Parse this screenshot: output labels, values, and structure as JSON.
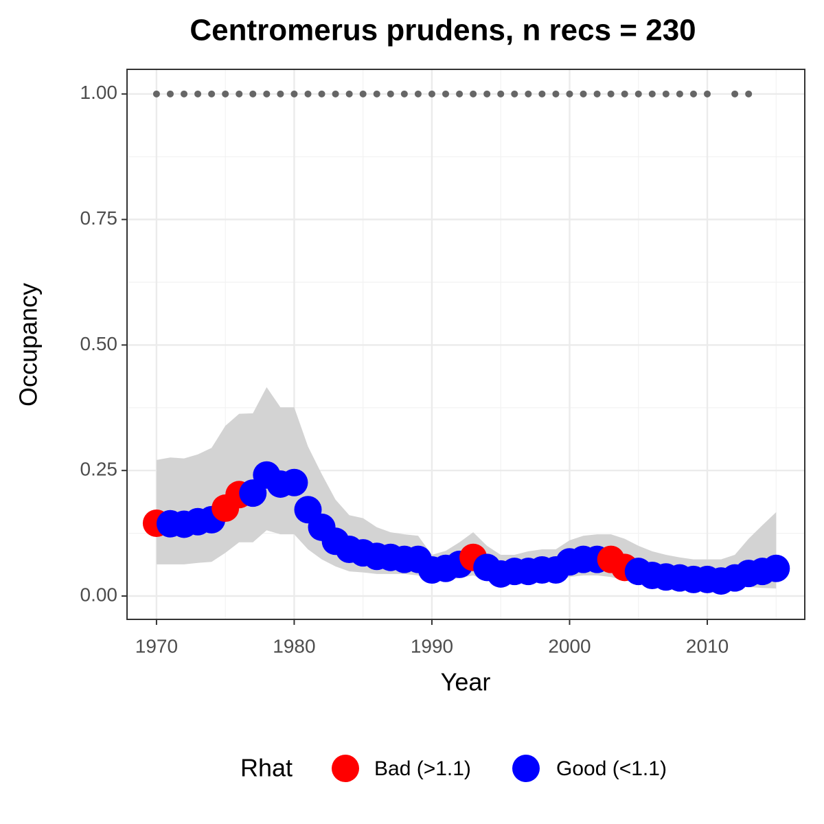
{
  "chart_data": {
    "type": "line",
    "title": "Centromerus prudens, n recs = 230",
    "x_label": "Year",
    "y_label": "Occupancy",
    "x": [
      1970,
      1971,
      1972,
      1973,
      1974,
      1975,
      1976,
      1977,
      1978,
      1979,
      1980,
      1981,
      1982,
      1983,
      1984,
      1985,
      1986,
      1987,
      1988,
      1989,
      1990,
      1991,
      1992,
      1993,
      1994,
      1995,
      1996,
      1997,
      1998,
      1999,
      2000,
      2001,
      2002,
      2003,
      2004,
      2005,
      2006,
      2007,
      2008,
      2009,
      2010,
      2011,
      2012,
      2013,
      2014,
      2015
    ],
    "legend_title": "Rhat",
    "series": [
      {
        "name": "Bad (>1.1)",
        "color": "#ff0000",
        "values": [
          0.145,
          null,
          null,
          null,
          null,
          0.175,
          0.202,
          null,
          null,
          null,
          null,
          null,
          null,
          null,
          null,
          null,
          null,
          null,
          null,
          null,
          null,
          null,
          null,
          0.077,
          null,
          null,
          null,
          null,
          null,
          null,
          null,
          null,
          null,
          0.073,
          0.057,
          null,
          null,
          null,
          null,
          null,
          null,
          null,
          null,
          null,
          null,
          null
        ]
      },
      {
        "name": "Good (<1.1)",
        "color": "#0000ff",
        "values": [
          null,
          0.144,
          0.143,
          0.148,
          0.152,
          null,
          null,
          0.205,
          0.241,
          0.223,
          0.226,
          0.172,
          0.137,
          0.109,
          0.093,
          0.086,
          0.079,
          0.077,
          0.073,
          0.073,
          0.052,
          0.055,
          0.063,
          null,
          0.057,
          0.044,
          0.049,
          0.049,
          0.052,
          0.052,
          0.068,
          0.073,
          0.073,
          null,
          null,
          0.049,
          0.041,
          0.038,
          0.036,
          0.033,
          0.033,
          0.03,
          0.036,
          0.045,
          0.049,
          0.055
        ]
      }
    ],
    "band": {
      "color": "#d3d3d3",
      "upper": [
        0.271,
        0.276,
        0.274,
        0.282,
        0.295,
        0.339,
        0.363,
        0.364,
        0.416,
        0.376,
        0.376,
        0.298,
        0.243,
        0.192,
        0.161,
        0.155,
        0.137,
        0.127,
        0.123,
        0.12,
        0.082,
        0.09,
        0.107,
        0.127,
        0.1,
        0.082,
        0.082,
        0.089,
        0.093,
        0.093,
        0.111,
        0.12,
        0.123,
        0.123,
        0.114,
        0.1,
        0.089,
        0.082,
        0.077,
        0.073,
        0.073,
        0.073,
        0.082,
        0.114,
        0.141,
        0.167
      ],
      "lower": [
        0.063,
        0.063,
        0.063,
        0.066,
        0.068,
        0.086,
        0.107,
        0.107,
        0.131,
        0.123,
        0.123,
        0.093,
        0.073,
        0.059,
        0.049,
        0.047,
        0.044,
        0.044,
        0.044,
        0.041,
        0.03,
        0.031,
        0.036,
        0.041,
        0.03,
        0.025,
        0.027,
        0.027,
        0.03,
        0.03,
        0.038,
        0.041,
        0.041,
        0.038,
        0.031,
        0.025,
        0.022,
        0.021,
        0.019,
        0.019,
        0.019,
        0.018,
        0.019,
        0.018,
        0.016,
        0.015
      ]
    },
    "records": {
      "color": "#666666",
      "x": [
        1970,
        1971,
        1972,
        1973,
        1974,
        1975,
        1976,
        1977,
        1978,
        1979,
        1980,
        1981,
        1982,
        1983,
        1984,
        1985,
        1986,
        1987,
        1988,
        1989,
        1990,
        1991,
        1992,
        1993,
        1994,
        1995,
        1996,
        1997,
        1998,
        1999,
        2000,
        2001,
        2002,
        2003,
        2004,
        2005,
        2006,
        2007,
        2008,
        2009,
        2010,
        2012,
        2013
      ],
      "values": [
        1,
        1,
        1,
        1,
        1,
        1,
        1,
        1,
        1,
        1,
        1,
        1,
        1,
        1,
        1,
        1,
        1,
        1,
        1,
        1,
        1,
        1,
        1,
        1,
        1,
        1,
        1,
        1,
        1,
        1,
        1,
        1,
        1,
        1,
        1,
        1,
        1,
        1,
        1,
        1,
        1,
        1,
        1
      ]
    },
    "xlim": [
      1967.86,
      2017.08
    ],
    "xticks": [
      1970,
      1980,
      1990,
      2000,
      2010
    ],
    "ylim": [
      -0.0465,
      1.049
    ],
    "yticks": [
      {
        "value": 0,
        "label": "0.00"
      },
      {
        "value": 0.25,
        "label": "0.25"
      },
      {
        "value": 0.5,
        "label": "0.50"
      },
      {
        "value": 0.75,
        "label": "0.75"
      },
      {
        "value": 1,
        "label": "1.00"
      }
    ],
    "grid": true
  }
}
